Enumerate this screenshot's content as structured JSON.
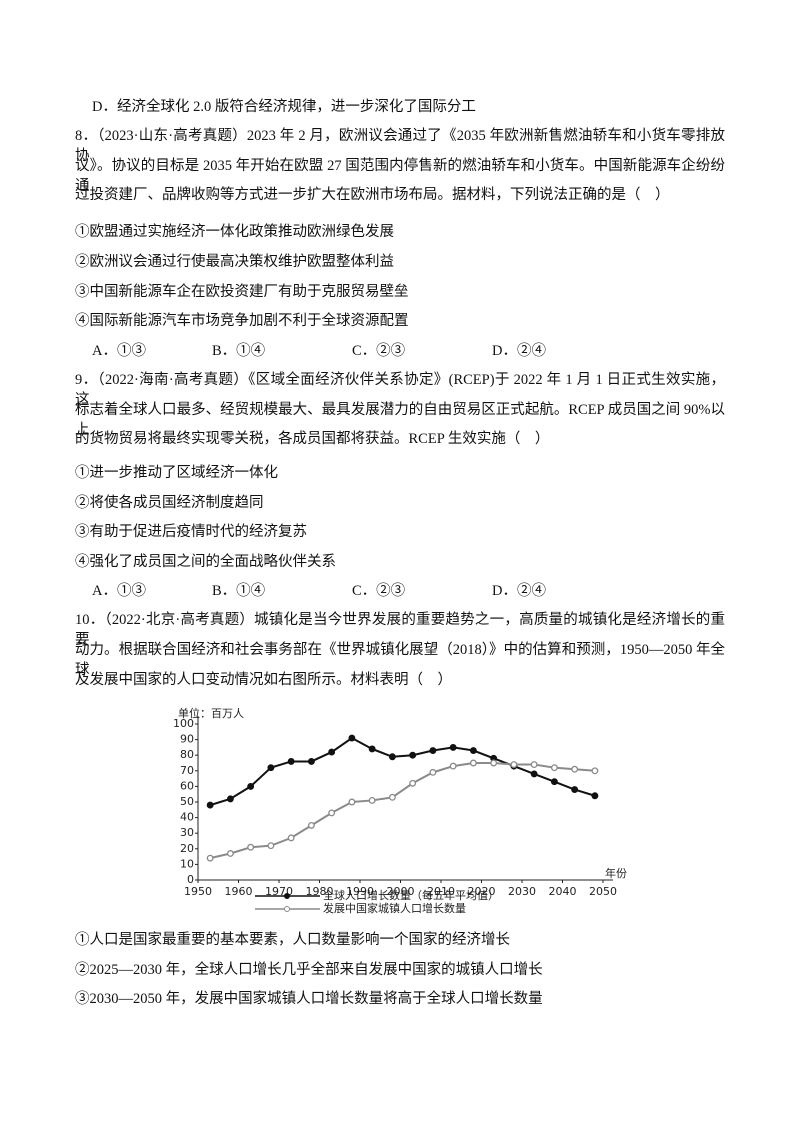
{
  "q7": {
    "option_d": "D．经济全球化 2.0 版符合经济规律，进一步深化了国际分工"
  },
  "q8": {
    "stem": [
      "8．（2023·山东·高考真题）2023 年 2 月，欧洲议会通过了《2035 年欧洲新售燃油轿车和小货车零排放协",
      "议》。协议的目标是 2035 年开始在欧盟 27 国范围内停售新的燃油轿车和小货车。中国新能源车企纷纷通",
      "过投资建厂、品牌收购等方式进一步扩大在欧洲市场布局。据材料，下列说法正确的是（　）"
    ],
    "statements": [
      "①欧盟通过实施经济一体化政策推动欧洲绿色发展",
      "②欧洲议会通过行使最高决策权维护欧盟整体利益",
      "③中国新能源车企在欧投资建厂有助于克服贸易壁垒",
      "④国际新能源汽车市场竞争加剧不利于全球资源配置"
    ],
    "options": [
      "A．①③",
      "B．①④",
      "C．②③",
      "D．②④"
    ]
  },
  "q9": {
    "stem": [
      "9．（2022·海南·高考真题）《区域全面经济伙伴关系协定》(RCEP)于 2022 年 1 月 1 日正式生效实施，这",
      "标志着全球人口最多、经贸规模最大、最具发展潜力的自由贸易区正式起航。RCEP 成员国之间 90%以上",
      "的货物贸易将最终实现零关税，各成员国都将获益。RCEP 生效实施（　）"
    ],
    "statements": [
      "①进一步推动了区域经济一体化",
      "②将使各成员国经济制度趋同",
      "③有助于促进后疫情时代的经济复苏",
      "④强化了成员国之间的全面战略伙伴关系"
    ],
    "options": [
      "A．①③",
      "B．①④",
      "C．②③",
      "D．②④"
    ]
  },
  "q10": {
    "stem": [
      "10．（2022·北京·高考真题）城镇化是当今世界发展的重要趋势之一，高质量的城镇化是经济增长的重要",
      "动力。根据联合国经济和社会事务部在《世界城镇化展望（2018）》中的估算和预测，1950—2050 年全球",
      "及发展中国家的人口变动情况如右图所示。材料表明（　）"
    ],
    "statements": [
      "①人口是国家最重要的基本要素，人口数量影响一个国家的经济增长",
      "②2025—2030 年，全球人口增长几乎全部来自发展中国家的城镇人口增长",
      "③2030—2050 年，发展中国家城镇人口增长数量将高于全球人口增长数量"
    ]
  },
  "chart_data": {
    "type": "line",
    "unit_label": "单位：百万人",
    "x_label": "年份",
    "x": [
      1953,
      1958,
      1963,
      1968,
      1973,
      1978,
      1983,
      1988,
      1993,
      1998,
      2003,
      2008,
      2013,
      2018,
      2023,
      2028,
      2033,
      2038,
      2043,
      2048
    ],
    "series": [
      {
        "name": "全球人口增长数量（每五年平均值）",
        "color": "#111111",
        "marker": "filled",
        "values": [
          48,
          52,
          60,
          72,
          76,
          76,
          82,
          91,
          84,
          79,
          80,
          83,
          85,
          83,
          78,
          73,
          68,
          63,
          58,
          54
        ]
      },
      {
        "name": "发展中国家城镇人口增长数量",
        "color": "#8a8a8a",
        "marker": "hollow",
        "values": [
          14,
          17,
          21,
          22,
          27,
          35,
          43,
          50,
          51,
          53,
          62,
          69,
          73,
          75,
          75,
          74,
          74,
          72,
          71,
          70
        ]
      }
    ],
    "xlim": [
      1950,
      2050
    ],
    "xticks": [
      1950,
      1960,
      1970,
      1980,
      1990,
      2000,
      2010,
      2020,
      2030,
      2040,
      2050
    ],
    "ylim": [
      0,
      100
    ],
    "yticks": [
      0,
      10,
      20,
      30,
      40,
      50,
      60,
      70,
      80,
      90,
      100
    ],
    "grid": false
  }
}
